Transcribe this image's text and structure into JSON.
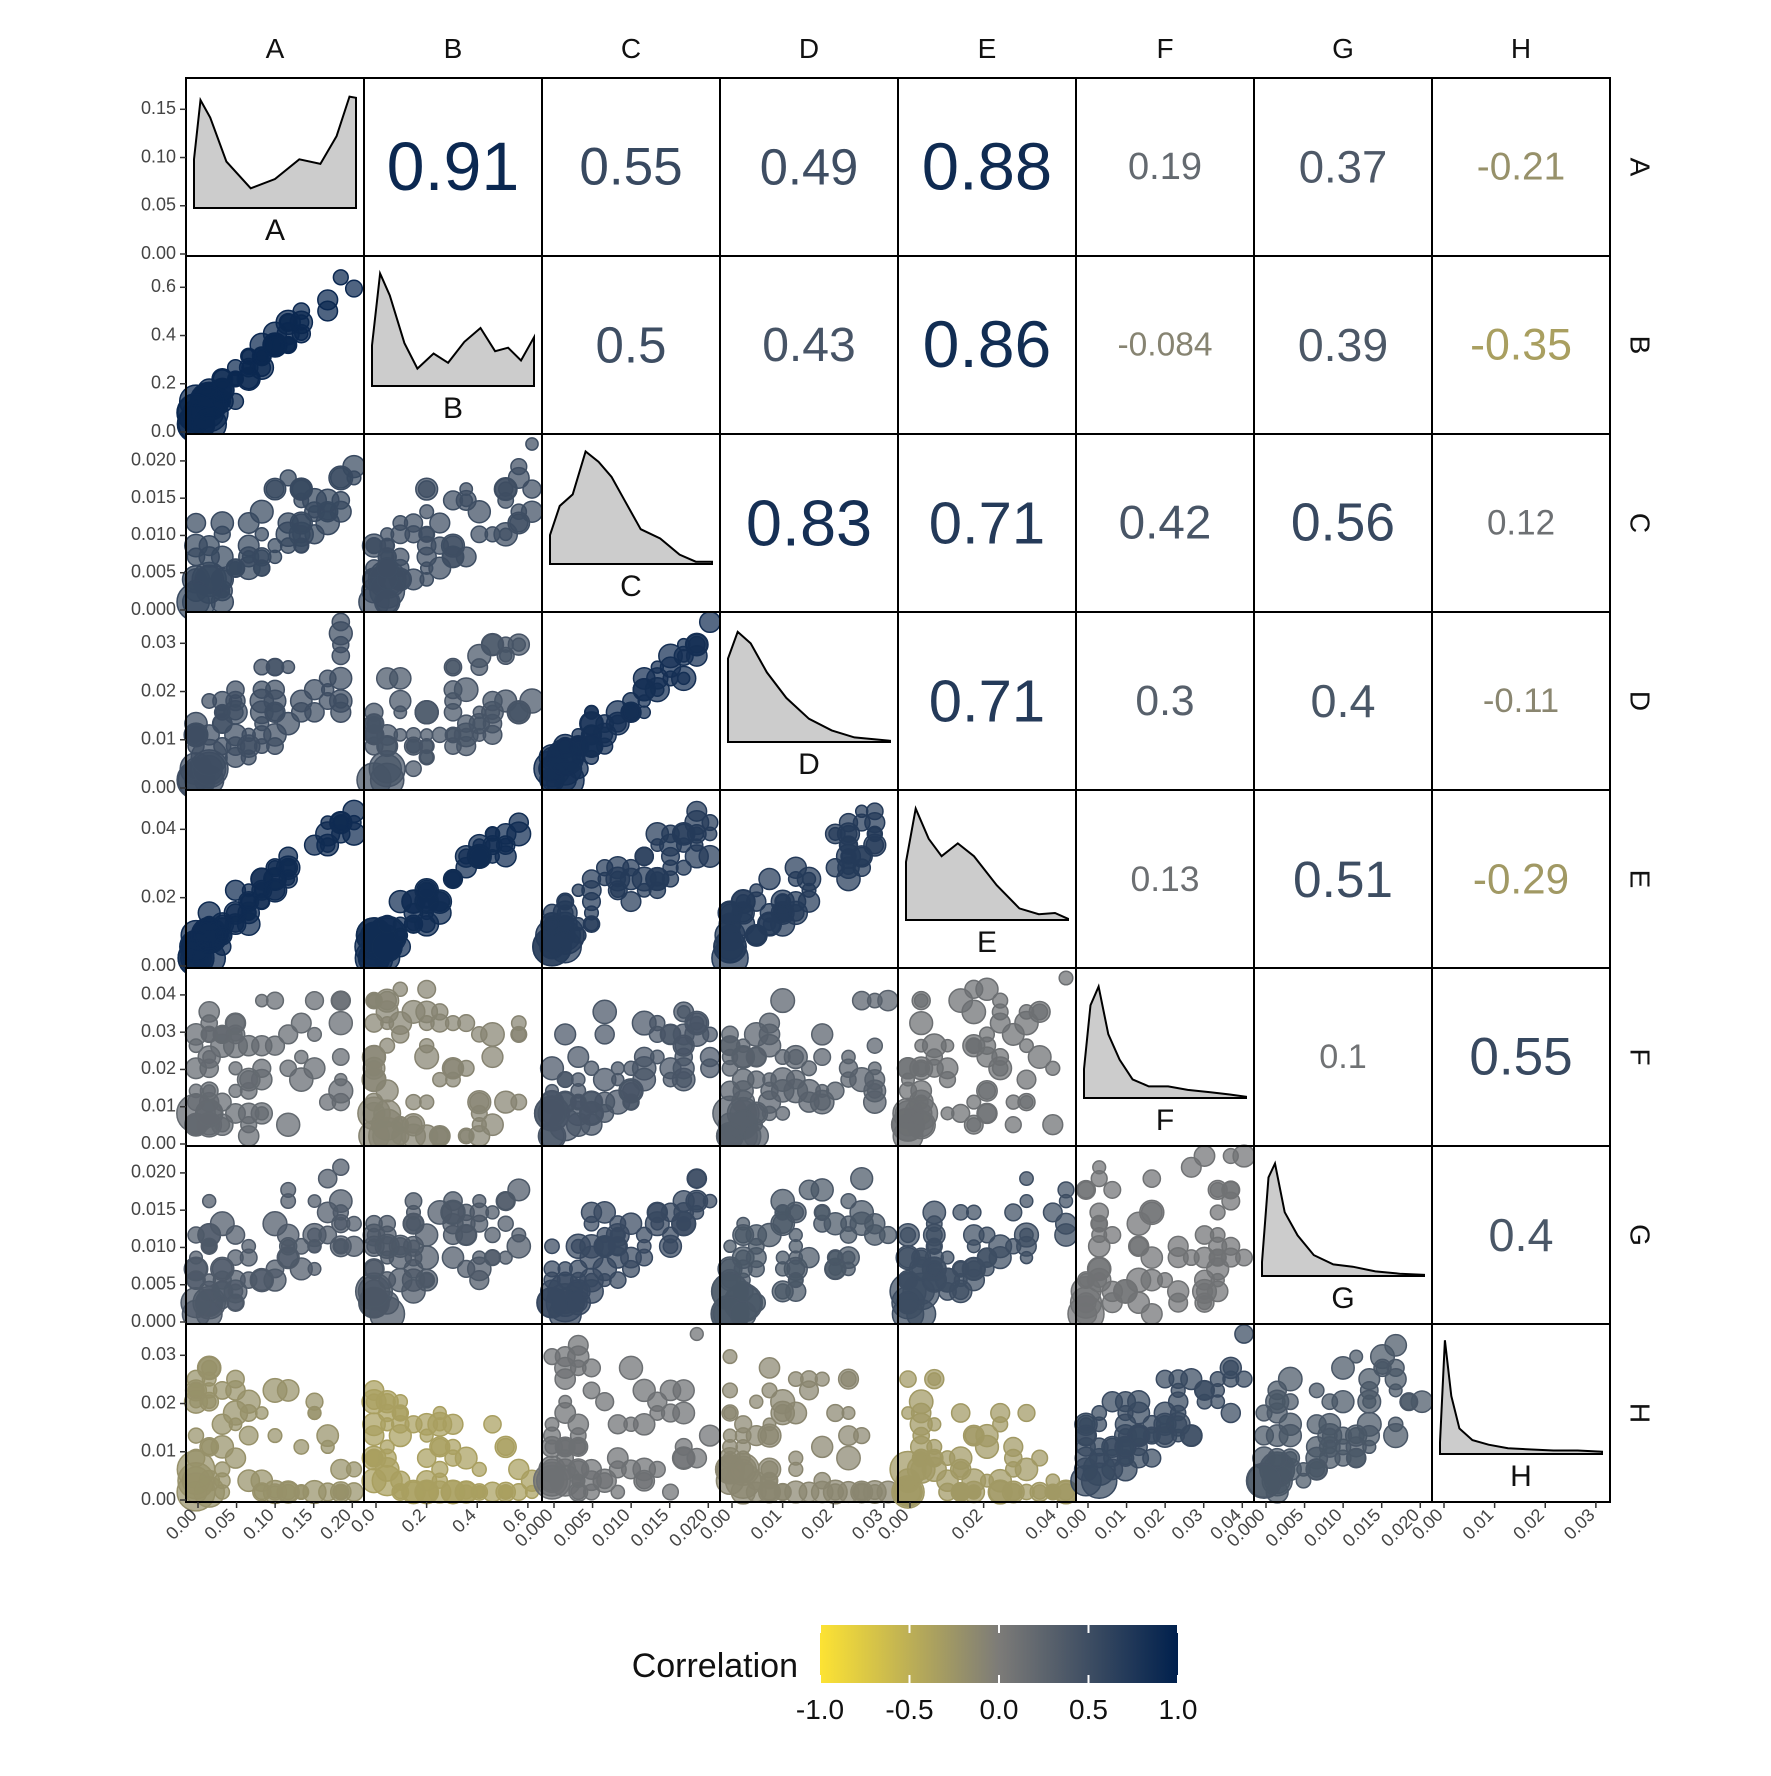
{
  "chart_data": {
    "type": "pairs-matrix",
    "variables": [
      "A",
      "B",
      "C",
      "D",
      "E",
      "F",
      "G",
      "H"
    ],
    "correlations": {
      "A": {
        "B": "0.91",
        "C": "0.55",
        "D": "0.49",
        "E": "0.88",
        "F": "0.19",
        "G": "0.37",
        "H": "-0.21"
      },
      "B": {
        "C": "0.5",
        "D": "0.43",
        "E": "0.86",
        "F": "-0.084",
        "G": "0.39",
        "H": "-0.35"
      },
      "C": {
        "D": "0.83",
        "E": "0.71",
        "F": "0.42",
        "G": "0.56",
        "H": "0.12"
      },
      "D": {
        "E": "0.71",
        "F": "0.3",
        "G": "0.4",
        "H": "-0.11"
      },
      "E": {
        "F": "0.13",
        "G": "0.51",
        "H": "-0.29"
      },
      "F": {
        "G": "0.1",
        "H": "0.55"
      },
      "G": {
        "H": "0.4"
      }
    },
    "y_ticks": {
      "A": [
        "0.00",
        "0.05",
        "0.10",
        "0.15"
      ],
      "B": [
        "0.0",
        "0.2",
        "0.4",
        "0.6"
      ],
      "C": [
        "0.000",
        "0.005",
        "0.010",
        "0.015",
        "0.020"
      ],
      "D": [
        "0.00",
        "0.01",
        "0.02",
        "0.03"
      ],
      "E": [
        "0.00",
        "0.02",
        "0.04"
      ],
      "F": [
        "0.00",
        "0.01",
        "0.02",
        "0.03",
        "0.04"
      ],
      "G": [
        "0.000",
        "0.005",
        "0.010",
        "0.015",
        "0.020"
      ],
      "H": [
        "0.00",
        "0.01",
        "0.02",
        "0.03"
      ]
    },
    "x_ticks": {
      "A": [
        "0.00",
        "0.05",
        "0.10",
        "0.15",
        "0.20"
      ],
      "B": [
        "0.0",
        "0.2",
        "0.4",
        "0.6"
      ],
      "C": [
        "0.000",
        "0.005",
        "0.010",
        "0.015",
        "0.020"
      ],
      "D": [
        "0.00",
        "0.01",
        "0.02",
        "0.03"
      ],
      "E": [
        "0.00",
        "0.02",
        "0.04"
      ],
      "F": [
        "0.00",
        "0.01",
        "0.02",
        "0.03",
        "0.04"
      ],
      "G": [
        "0.000",
        "0.005",
        "0.010",
        "0.015",
        "0.020"
      ],
      "H": [
        "0.00",
        "0.01",
        "0.02",
        "0.03"
      ]
    },
    "densities": {
      "A": [
        [
          0,
          0.42
        ],
        [
          0.04,
          0.93
        ],
        [
          0.1,
          0.78
        ],
        [
          0.2,
          0.4
        ],
        [
          0.35,
          0.17
        ],
        [
          0.5,
          0.25
        ],
        [
          0.65,
          0.42
        ],
        [
          0.78,
          0.38
        ],
        [
          0.88,
          0.62
        ],
        [
          0.96,
          0.96
        ],
        [
          1.0,
          0.95
        ]
      ],
      "B": [
        [
          0,
          0.35
        ],
        [
          0.05,
          0.97
        ],
        [
          0.11,
          0.78
        ],
        [
          0.2,
          0.37
        ],
        [
          0.28,
          0.15
        ],
        [
          0.38,
          0.28
        ],
        [
          0.47,
          0.2
        ],
        [
          0.57,
          0.38
        ],
        [
          0.67,
          0.5
        ],
        [
          0.76,
          0.3
        ],
        [
          0.84,
          0.33
        ],
        [
          0.92,
          0.22
        ],
        [
          1.0,
          0.42
        ]
      ],
      "C": [
        [
          0,
          0.25
        ],
        [
          0.06,
          0.5
        ],
        [
          0.14,
          0.6
        ],
        [
          0.22,
          0.97
        ],
        [
          0.3,
          0.88
        ],
        [
          0.38,
          0.75
        ],
        [
          0.46,
          0.55
        ],
        [
          0.56,
          0.3
        ],
        [
          0.68,
          0.22
        ],
        [
          0.8,
          0.08
        ],
        [
          0.9,
          0.02
        ],
        [
          1.0,
          0.02
        ]
      ],
      "D": [
        [
          0,
          0.72
        ],
        [
          0.06,
          0.95
        ],
        [
          0.14,
          0.85
        ],
        [
          0.24,
          0.6
        ],
        [
          0.36,
          0.38
        ],
        [
          0.5,
          0.2
        ],
        [
          0.64,
          0.1
        ],
        [
          0.78,
          0.04
        ],
        [
          1.0,
          0.01
        ]
      ],
      "E": [
        [
          0,
          0.5
        ],
        [
          0.06,
          0.96
        ],
        [
          0.14,
          0.7
        ],
        [
          0.22,
          0.55
        ],
        [
          0.32,
          0.66
        ],
        [
          0.42,
          0.55
        ],
        [
          0.56,
          0.3
        ],
        [
          0.7,
          0.1
        ],
        [
          0.82,
          0.05
        ],
        [
          0.92,
          0.06
        ],
        [
          1.0,
          0.01
        ]
      ],
      "F": [
        [
          0,
          0.25
        ],
        [
          0.04,
          0.8
        ],
        [
          0.09,
          0.96
        ],
        [
          0.15,
          0.55
        ],
        [
          0.22,
          0.33
        ],
        [
          0.3,
          0.16
        ],
        [
          0.4,
          0.1
        ],
        [
          0.52,
          0.1
        ],
        [
          0.64,
          0.07
        ],
        [
          0.78,
          0.05
        ],
        [
          0.9,
          0.03
        ],
        [
          1.0,
          0.01
        ]
      ],
      "G": [
        [
          0,
          0.12
        ],
        [
          0.04,
          0.85
        ],
        [
          0.08,
          0.97
        ],
        [
          0.14,
          0.55
        ],
        [
          0.22,
          0.35
        ],
        [
          0.32,
          0.18
        ],
        [
          0.44,
          0.1
        ],
        [
          0.56,
          0.08
        ],
        [
          0.7,
          0.04
        ],
        [
          0.85,
          0.02
        ],
        [
          1.0,
          0.01
        ]
      ],
      "H": [
        [
          0,
          0.1
        ],
        [
          0.03,
          0.98
        ],
        [
          0.07,
          0.5
        ],
        [
          0.12,
          0.22
        ],
        [
          0.2,
          0.12
        ],
        [
          0.3,
          0.08
        ],
        [
          0.42,
          0.05
        ],
        [
          0.55,
          0.04
        ],
        [
          0.7,
          0.03
        ],
        [
          0.85,
          0.03
        ],
        [
          1.0,
          0.02
        ]
      ]
    },
    "legend": {
      "title": "Correlation",
      "ticks": [
        "-1.0",
        "-0.5",
        "0.0",
        "0.5",
        "1.0"
      ],
      "low_color": "#FDE333",
      "mid_color": "#7C7B78",
      "high_color": "#00204D"
    },
    "grid": false
  }
}
